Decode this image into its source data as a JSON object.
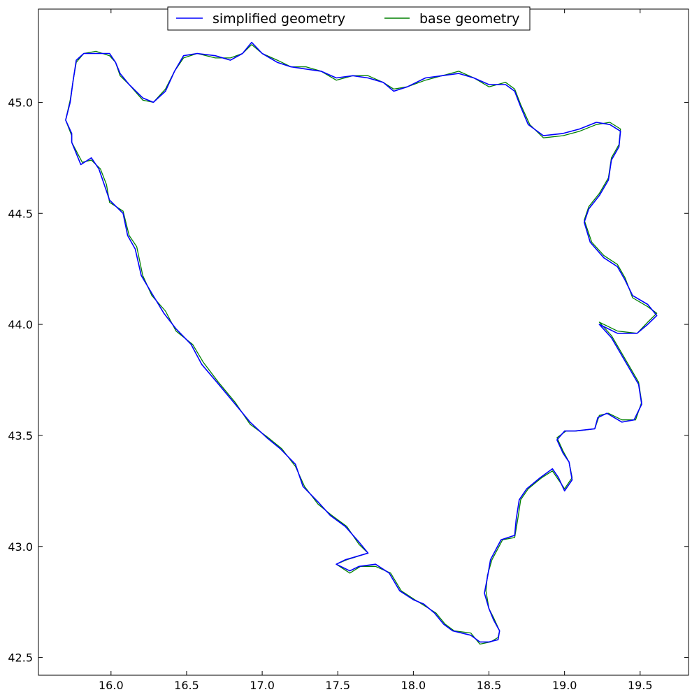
{
  "chart_data": {
    "type": "line",
    "title": "",
    "xlabel": "",
    "ylabel": "",
    "xlim": [
      15.52,
      19.82
    ],
    "ylim": [
      42.42,
      45.42
    ],
    "grid": false,
    "legend_placement": "upper-center",
    "x_ticks": [
      "16.0",
      "16.5",
      "17.0",
      "17.5",
      "18.0",
      "18.5",
      "19.0",
      "19.5"
    ],
    "y_ticks": [
      "42.5",
      "43.0",
      "43.5",
      "44.0",
      "44.5",
      "45.0"
    ],
    "series": [
      {
        "name": "simplified geometry",
        "color": "#0000ff",
        "points": [
          [
            15.74,
            44.82
          ],
          [
            15.8,
            44.72
          ],
          [
            15.87,
            44.75
          ],
          [
            15.92,
            44.7
          ],
          [
            15.96,
            44.62
          ],
          [
            15.99,
            44.56
          ],
          [
            16.08,
            44.5
          ],
          [
            16.11,
            44.4
          ],
          [
            16.16,
            44.34
          ],
          [
            16.2,
            44.22
          ],
          [
            16.27,
            44.14
          ],
          [
            16.35,
            44.05
          ],
          [
            16.43,
            43.98
          ],
          [
            16.53,
            43.91
          ],
          [
            16.6,
            43.82
          ],
          [
            16.7,
            43.74
          ],
          [
            16.81,
            43.65
          ],
          [
            16.92,
            43.56
          ],
          [
            17.03,
            43.49
          ],
          [
            17.12,
            43.44
          ],
          [
            17.22,
            43.37
          ],
          [
            17.27,
            43.27
          ],
          [
            17.37,
            43.2
          ],
          [
            17.45,
            43.14
          ],
          [
            17.55,
            43.09
          ],
          [
            17.64,
            43.02
          ],
          [
            17.7,
            42.97
          ],
          [
            17.55,
            42.94
          ],
          [
            17.49,
            42.92
          ],
          [
            17.58,
            42.89
          ],
          [
            17.64,
            42.91
          ],
          [
            17.75,
            42.92
          ],
          [
            17.84,
            42.88
          ],
          [
            17.91,
            42.8
          ],
          [
            18.0,
            42.76
          ],
          [
            18.07,
            42.74
          ],
          [
            18.14,
            42.7
          ],
          [
            18.2,
            42.65
          ],
          [
            18.26,
            42.62
          ],
          [
            18.38,
            42.6
          ],
          [
            18.44,
            42.57
          ],
          [
            18.5,
            42.57
          ],
          [
            18.56,
            42.58
          ],
          [
            18.57,
            42.62
          ],
          [
            18.53,
            42.67
          ],
          [
            18.5,
            42.72
          ],
          [
            18.47,
            42.79
          ],
          [
            18.49,
            42.86
          ],
          [
            18.51,
            42.94
          ],
          [
            18.58,
            43.03
          ],
          [
            18.67,
            43.05
          ],
          [
            18.68,
            43.12
          ],
          [
            18.7,
            43.21
          ],
          [
            18.75,
            43.26
          ],
          [
            18.84,
            43.31
          ],
          [
            18.92,
            43.35
          ],
          [
            18.96,
            43.31
          ],
          [
            19.0,
            43.25
          ],
          [
            19.05,
            43.3
          ],
          [
            19.03,
            43.38
          ],
          [
            18.99,
            43.42
          ],
          [
            18.95,
            43.48
          ],
          [
            19.0,
            43.52
          ],
          [
            19.07,
            43.52
          ],
          [
            19.2,
            43.53
          ],
          [
            19.22,
            43.58
          ],
          [
            19.28,
            43.6
          ],
          [
            19.38,
            43.56
          ],
          [
            19.46,
            43.57
          ],
          [
            19.51,
            43.64
          ],
          [
            19.49,
            43.73
          ],
          [
            19.43,
            43.8
          ],
          [
            19.37,
            43.87
          ],
          [
            19.31,
            43.94
          ],
          [
            19.23,
            44.0
          ],
          [
            19.35,
            43.96
          ],
          [
            19.48,
            43.96
          ],
          [
            19.55,
            44.0
          ],
          [
            19.61,
            44.04
          ],
          [
            19.55,
            44.09
          ],
          [
            19.45,
            44.13
          ],
          [
            19.4,
            44.2
          ],
          [
            19.35,
            44.26
          ],
          [
            19.26,
            44.3
          ],
          [
            19.17,
            44.37
          ],
          [
            19.13,
            44.46
          ],
          [
            19.16,
            44.52
          ],
          [
            19.23,
            44.58
          ],
          [
            19.29,
            44.65
          ],
          [
            19.31,
            44.74
          ],
          [
            19.36,
            44.8
          ],
          [
            19.37,
            44.87
          ],
          [
            19.3,
            44.9
          ],
          [
            19.21,
            44.91
          ],
          [
            19.1,
            44.88
          ],
          [
            18.99,
            44.86
          ],
          [
            18.86,
            44.85
          ],
          [
            18.76,
            44.9
          ],
          [
            18.71,
            44.98
          ],
          [
            18.67,
            45.05
          ],
          [
            18.61,
            45.08
          ],
          [
            18.5,
            45.08
          ],
          [
            18.4,
            45.11
          ],
          [
            18.3,
            45.13
          ],
          [
            18.19,
            45.12
          ],
          [
            18.08,
            45.11
          ],
          [
            17.96,
            45.07
          ],
          [
            17.87,
            45.05
          ],
          [
            17.8,
            45.09
          ],
          [
            17.7,
            45.11
          ],
          [
            17.6,
            45.12
          ],
          [
            17.49,
            45.11
          ],
          [
            17.39,
            45.14
          ],
          [
            17.29,
            45.15
          ],
          [
            17.19,
            45.16
          ],
          [
            17.1,
            45.18
          ],
          [
            17.0,
            45.22
          ],
          [
            16.93,
            45.27
          ],
          [
            16.87,
            45.22
          ],
          [
            16.79,
            45.19
          ],
          [
            16.69,
            45.21
          ],
          [
            16.57,
            45.22
          ],
          [
            16.48,
            45.21
          ],
          [
            16.42,
            45.14
          ],
          [
            16.36,
            45.05
          ],
          [
            16.28,
            45.0
          ],
          [
            16.21,
            45.02
          ],
          [
            16.12,
            45.08
          ],
          [
            16.06,
            45.13
          ],
          [
            16.03,
            45.18
          ],
          [
            15.99,
            45.22
          ],
          [
            15.9,
            45.22
          ],
          [
            15.82,
            45.22
          ],
          [
            15.77,
            45.19
          ],
          [
            15.75,
            45.1
          ],
          [
            15.73,
            45.0
          ],
          [
            15.7,
            44.92
          ],
          [
            15.74,
            44.86
          ],
          [
            15.74,
            44.82
          ]
        ]
      },
      {
        "name": "base geometry",
        "color": "#008000",
        "points": [
          [
            15.74,
            44.82
          ],
          [
            15.81,
            44.73
          ],
          [
            15.87,
            44.74
          ],
          [
            15.93,
            44.7
          ],
          [
            15.97,
            44.63
          ],
          [
            15.99,
            44.55
          ],
          [
            16.08,
            44.51
          ],
          [
            16.12,
            44.4
          ],
          [
            16.17,
            44.35
          ],
          [
            16.21,
            44.22
          ],
          [
            16.27,
            44.13
          ],
          [
            16.36,
            44.06
          ],
          [
            16.43,
            43.97
          ],
          [
            16.54,
            43.91
          ],
          [
            16.61,
            43.83
          ],
          [
            16.71,
            43.74
          ],
          [
            16.82,
            43.65
          ],
          [
            16.92,
            43.55
          ],
          [
            17.04,
            43.49
          ],
          [
            17.13,
            43.44
          ],
          [
            17.22,
            43.36
          ],
          [
            17.28,
            43.27
          ],
          [
            17.37,
            43.19
          ],
          [
            17.46,
            43.14
          ],
          [
            17.56,
            43.09
          ],
          [
            17.64,
            43.01
          ],
          [
            17.7,
            42.97
          ],
          [
            17.56,
            42.94
          ],
          [
            17.49,
            42.92
          ],
          [
            17.58,
            42.88
          ],
          [
            17.65,
            42.91
          ],
          [
            17.75,
            42.91
          ],
          [
            17.85,
            42.88
          ],
          [
            17.92,
            42.8
          ],
          [
            18.01,
            42.76
          ],
          [
            18.08,
            42.73
          ],
          [
            18.15,
            42.7
          ],
          [
            18.21,
            42.65
          ],
          [
            18.27,
            42.62
          ],
          [
            18.38,
            42.61
          ],
          [
            18.44,
            42.56
          ],
          [
            18.51,
            42.57
          ],
          [
            18.56,
            42.59
          ],
          [
            18.57,
            42.62
          ],
          [
            18.53,
            42.68
          ],
          [
            18.5,
            42.72
          ],
          [
            18.48,
            42.8
          ],
          [
            18.49,
            42.87
          ],
          [
            18.52,
            42.94
          ],
          [
            18.59,
            43.03
          ],
          [
            18.67,
            43.04
          ],
          [
            18.69,
            43.12
          ],
          [
            18.71,
            43.21
          ],
          [
            18.76,
            43.26
          ],
          [
            18.85,
            43.31
          ],
          [
            18.92,
            43.34
          ],
          [
            18.96,
            43.3
          ],
          [
            19.0,
            43.26
          ],
          [
            19.05,
            43.31
          ],
          [
            19.03,
            43.38
          ],
          [
            18.99,
            43.43
          ],
          [
            18.95,
            43.49
          ],
          [
            19.01,
            43.52
          ],
          [
            19.08,
            43.52
          ],
          [
            19.2,
            43.53
          ],
          [
            19.23,
            43.59
          ],
          [
            19.29,
            43.6
          ],
          [
            19.38,
            43.57
          ],
          [
            19.47,
            43.57
          ],
          [
            19.51,
            43.65
          ],
          [
            19.49,
            43.74
          ],
          [
            19.43,
            43.81
          ],
          [
            19.37,
            43.88
          ],
          [
            19.31,
            43.95
          ],
          [
            19.23,
            44.01
          ],
          [
            19.35,
            43.97
          ],
          [
            19.48,
            43.96
          ],
          [
            19.55,
            44.01
          ],
          [
            19.61,
            44.05
          ],
          [
            19.55,
            44.08
          ],
          [
            19.45,
            44.12
          ],
          [
            19.4,
            44.21
          ],
          [
            19.35,
            44.27
          ],
          [
            19.26,
            44.31
          ],
          [
            19.18,
            44.37
          ],
          [
            19.13,
            44.47
          ],
          [
            19.16,
            44.53
          ],
          [
            19.23,
            44.59
          ],
          [
            19.29,
            44.66
          ],
          [
            19.31,
            44.75
          ],
          [
            19.36,
            44.81
          ],
          [
            19.37,
            44.88
          ],
          [
            19.3,
            44.91
          ],
          [
            19.21,
            44.9
          ],
          [
            19.1,
            44.87
          ],
          [
            18.99,
            44.85
          ],
          [
            18.86,
            44.84
          ],
          [
            18.77,
            44.9
          ],
          [
            18.71,
            44.99
          ],
          [
            18.67,
            45.06
          ],
          [
            18.61,
            45.09
          ],
          [
            18.5,
            45.07
          ],
          [
            18.4,
            45.11
          ],
          [
            18.3,
            45.14
          ],
          [
            18.19,
            45.12
          ],
          [
            18.08,
            45.1
          ],
          [
            17.96,
            45.07
          ],
          [
            17.87,
            45.06
          ],
          [
            17.8,
            45.09
          ],
          [
            17.7,
            45.12
          ],
          [
            17.6,
            45.12
          ],
          [
            17.49,
            45.1
          ],
          [
            17.39,
            45.14
          ],
          [
            17.29,
            45.16
          ],
          [
            17.19,
            45.16
          ],
          [
            17.1,
            45.19
          ],
          [
            17.0,
            45.22
          ],
          [
            16.93,
            45.26
          ],
          [
            16.87,
            45.22
          ],
          [
            16.79,
            45.2
          ],
          [
            16.69,
            45.2
          ],
          [
            16.57,
            45.22
          ],
          [
            16.48,
            45.2
          ],
          [
            16.42,
            45.14
          ],
          [
            16.36,
            45.06
          ],
          [
            16.28,
            45.0
          ],
          [
            16.21,
            45.01
          ],
          [
            16.12,
            45.08
          ],
          [
            16.06,
            45.12
          ],
          [
            16.03,
            45.18
          ],
          [
            15.99,
            45.21
          ],
          [
            15.9,
            45.23
          ],
          [
            15.82,
            45.22
          ],
          [
            15.77,
            45.18
          ],
          [
            15.75,
            45.1
          ],
          [
            15.73,
            45.01
          ],
          [
            15.7,
            44.92
          ],
          [
            15.74,
            44.85
          ],
          [
            15.74,
            44.82
          ]
        ]
      }
    ]
  }
}
